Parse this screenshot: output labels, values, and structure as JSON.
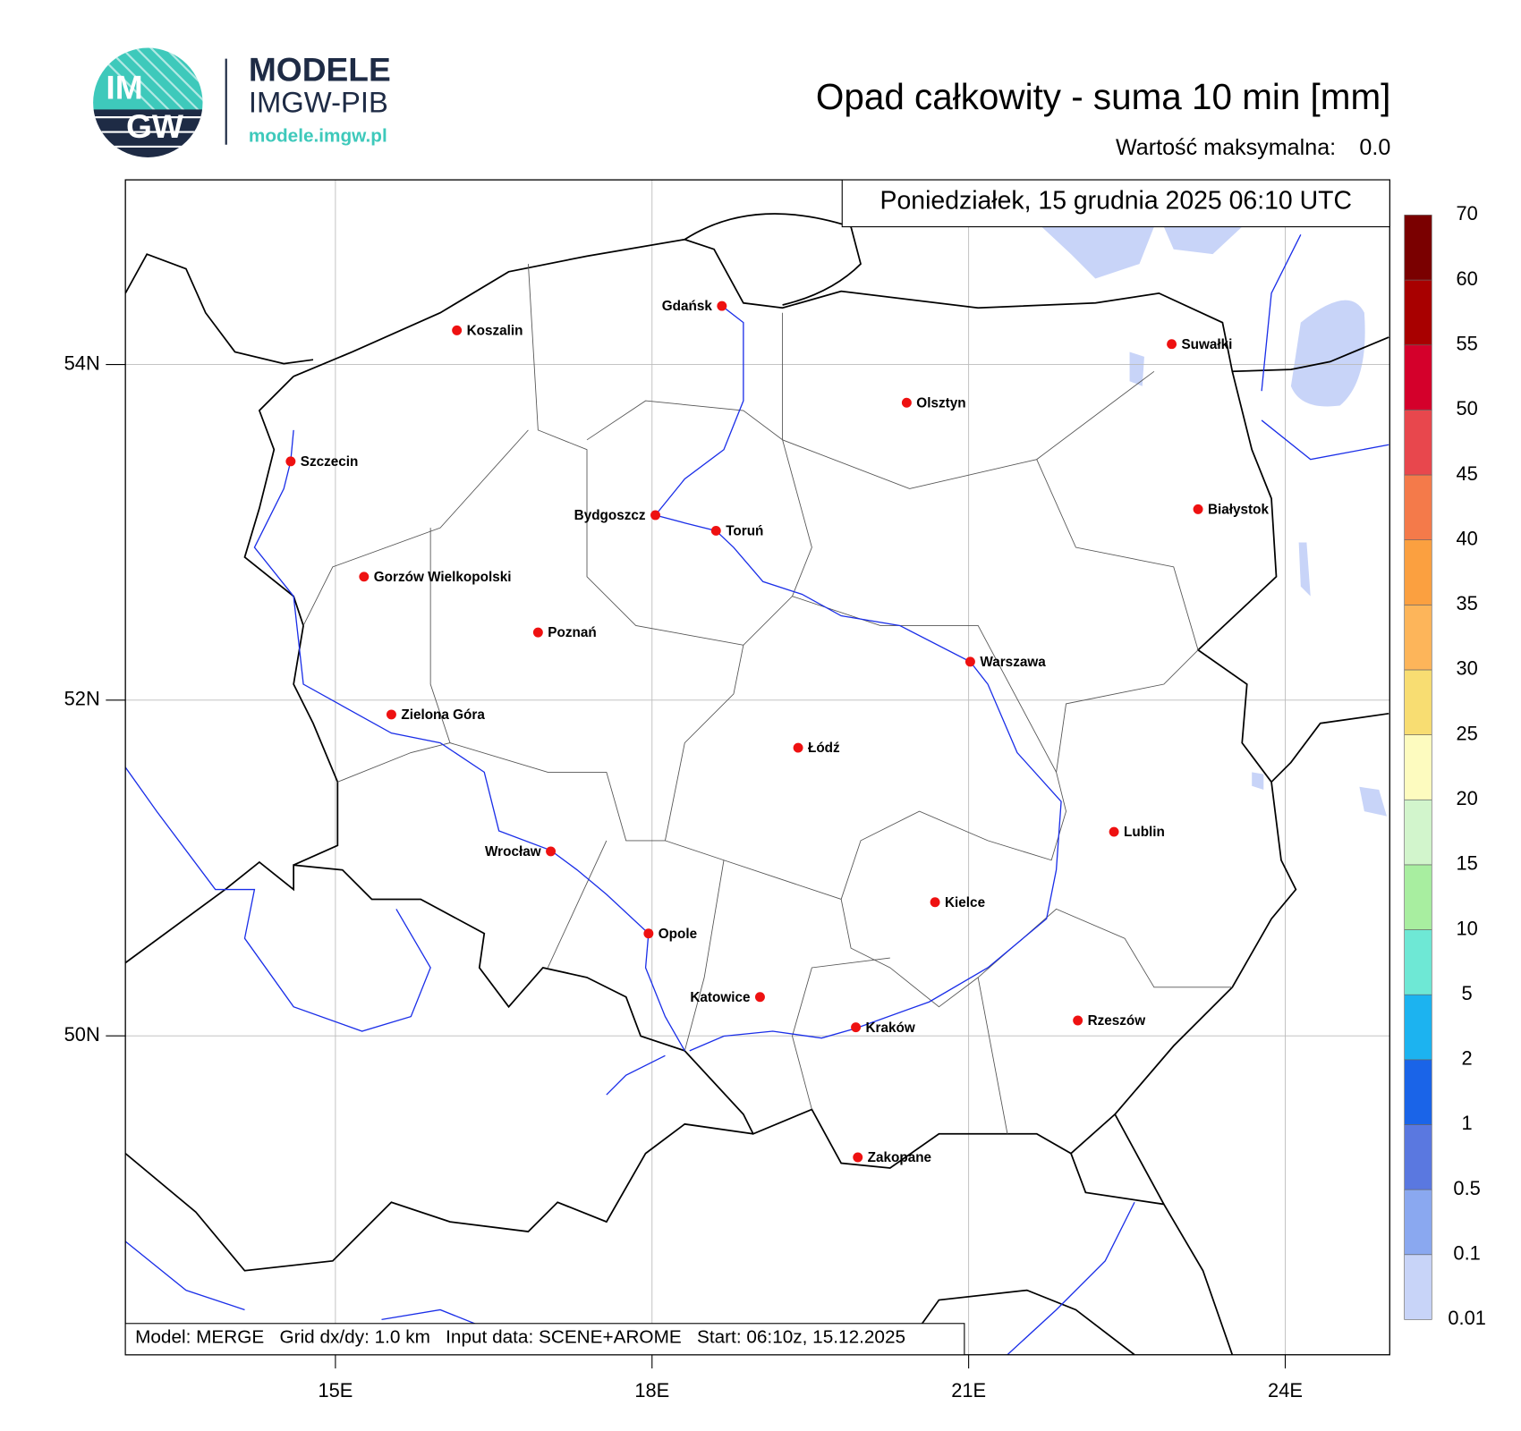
{
  "logo": {
    "top": "IM",
    "bottom": "GW",
    "name": "MODELE",
    "org": "IMGW-PIB",
    "url": "modele.imgw.pl"
  },
  "header": {
    "title": "Opad całkowity - suma 10 min [mm]",
    "max_label": "Wartość maksymalna:",
    "max_value": {
      "value": 0,
      "label": "0.0"
    },
    "date": "Poniedziałek, 15 grudnia 2025 06:10 UTC"
  },
  "map": {
    "lon_range": [
      13.01,
      24.99
    ],
    "lat_range": [
      48.1,
      55.1
    ],
    "lon_ticks": [
      {
        "value": 15,
        "label": "15E"
      },
      {
        "value": 18,
        "label": "18E"
      },
      {
        "value": 21,
        "label": "21E"
      },
      {
        "value": 24,
        "label": "24E"
      }
    ],
    "lat_ticks": [
      {
        "value": 54,
        "label": "54N"
      },
      {
        "value": 52,
        "label": "52N"
      },
      {
        "value": 50,
        "label": "50N"
      }
    ],
    "grid": true,
    "cities": [
      "Gdańsk",
      "Koszalin",
      "Szczecin",
      "Suwałki",
      "Olsztyn",
      "Białystok",
      "Bydgoszcz",
      "Toruń",
      "Gorzów Wielkopolski",
      "Poznań",
      "Warszawa",
      "Zielona Góra",
      "Łódź",
      "Lublin",
      "Wrocław",
      "Kielce",
      "Opole",
      "Katowice",
      "Kraków",
      "Rzeszów",
      "Zakopane"
    ],
    "city_color": "#ee1111",
    "footer": "Model: MERGE   Grid dx/dy: 1.0 km   Input data: SCENE+AROME   Start: 06:10z, 15.12.2025"
  },
  "colorbar": {
    "levels": [
      0.01,
      0.1,
      0.5,
      1,
      2,
      5,
      10,
      15,
      20,
      25,
      30,
      35,
      40,
      45,
      50,
      55,
      60,
      70
    ],
    "colors": [
      "#c8d4f8",
      "#8aa8f0",
      "#5a78e0",
      "#1a64e8",
      "#1cb3f0",
      "#6ee8d5",
      "#a8eea0",
      "#d2f5cc",
      "#fdfbbf",
      "#f8dd72",
      "#fdb55a",
      "#fba040",
      "#f47a4a",
      "#e8474d",
      "#d4002b",
      "#a80000",
      "#7a0000"
    ]
  }
}
